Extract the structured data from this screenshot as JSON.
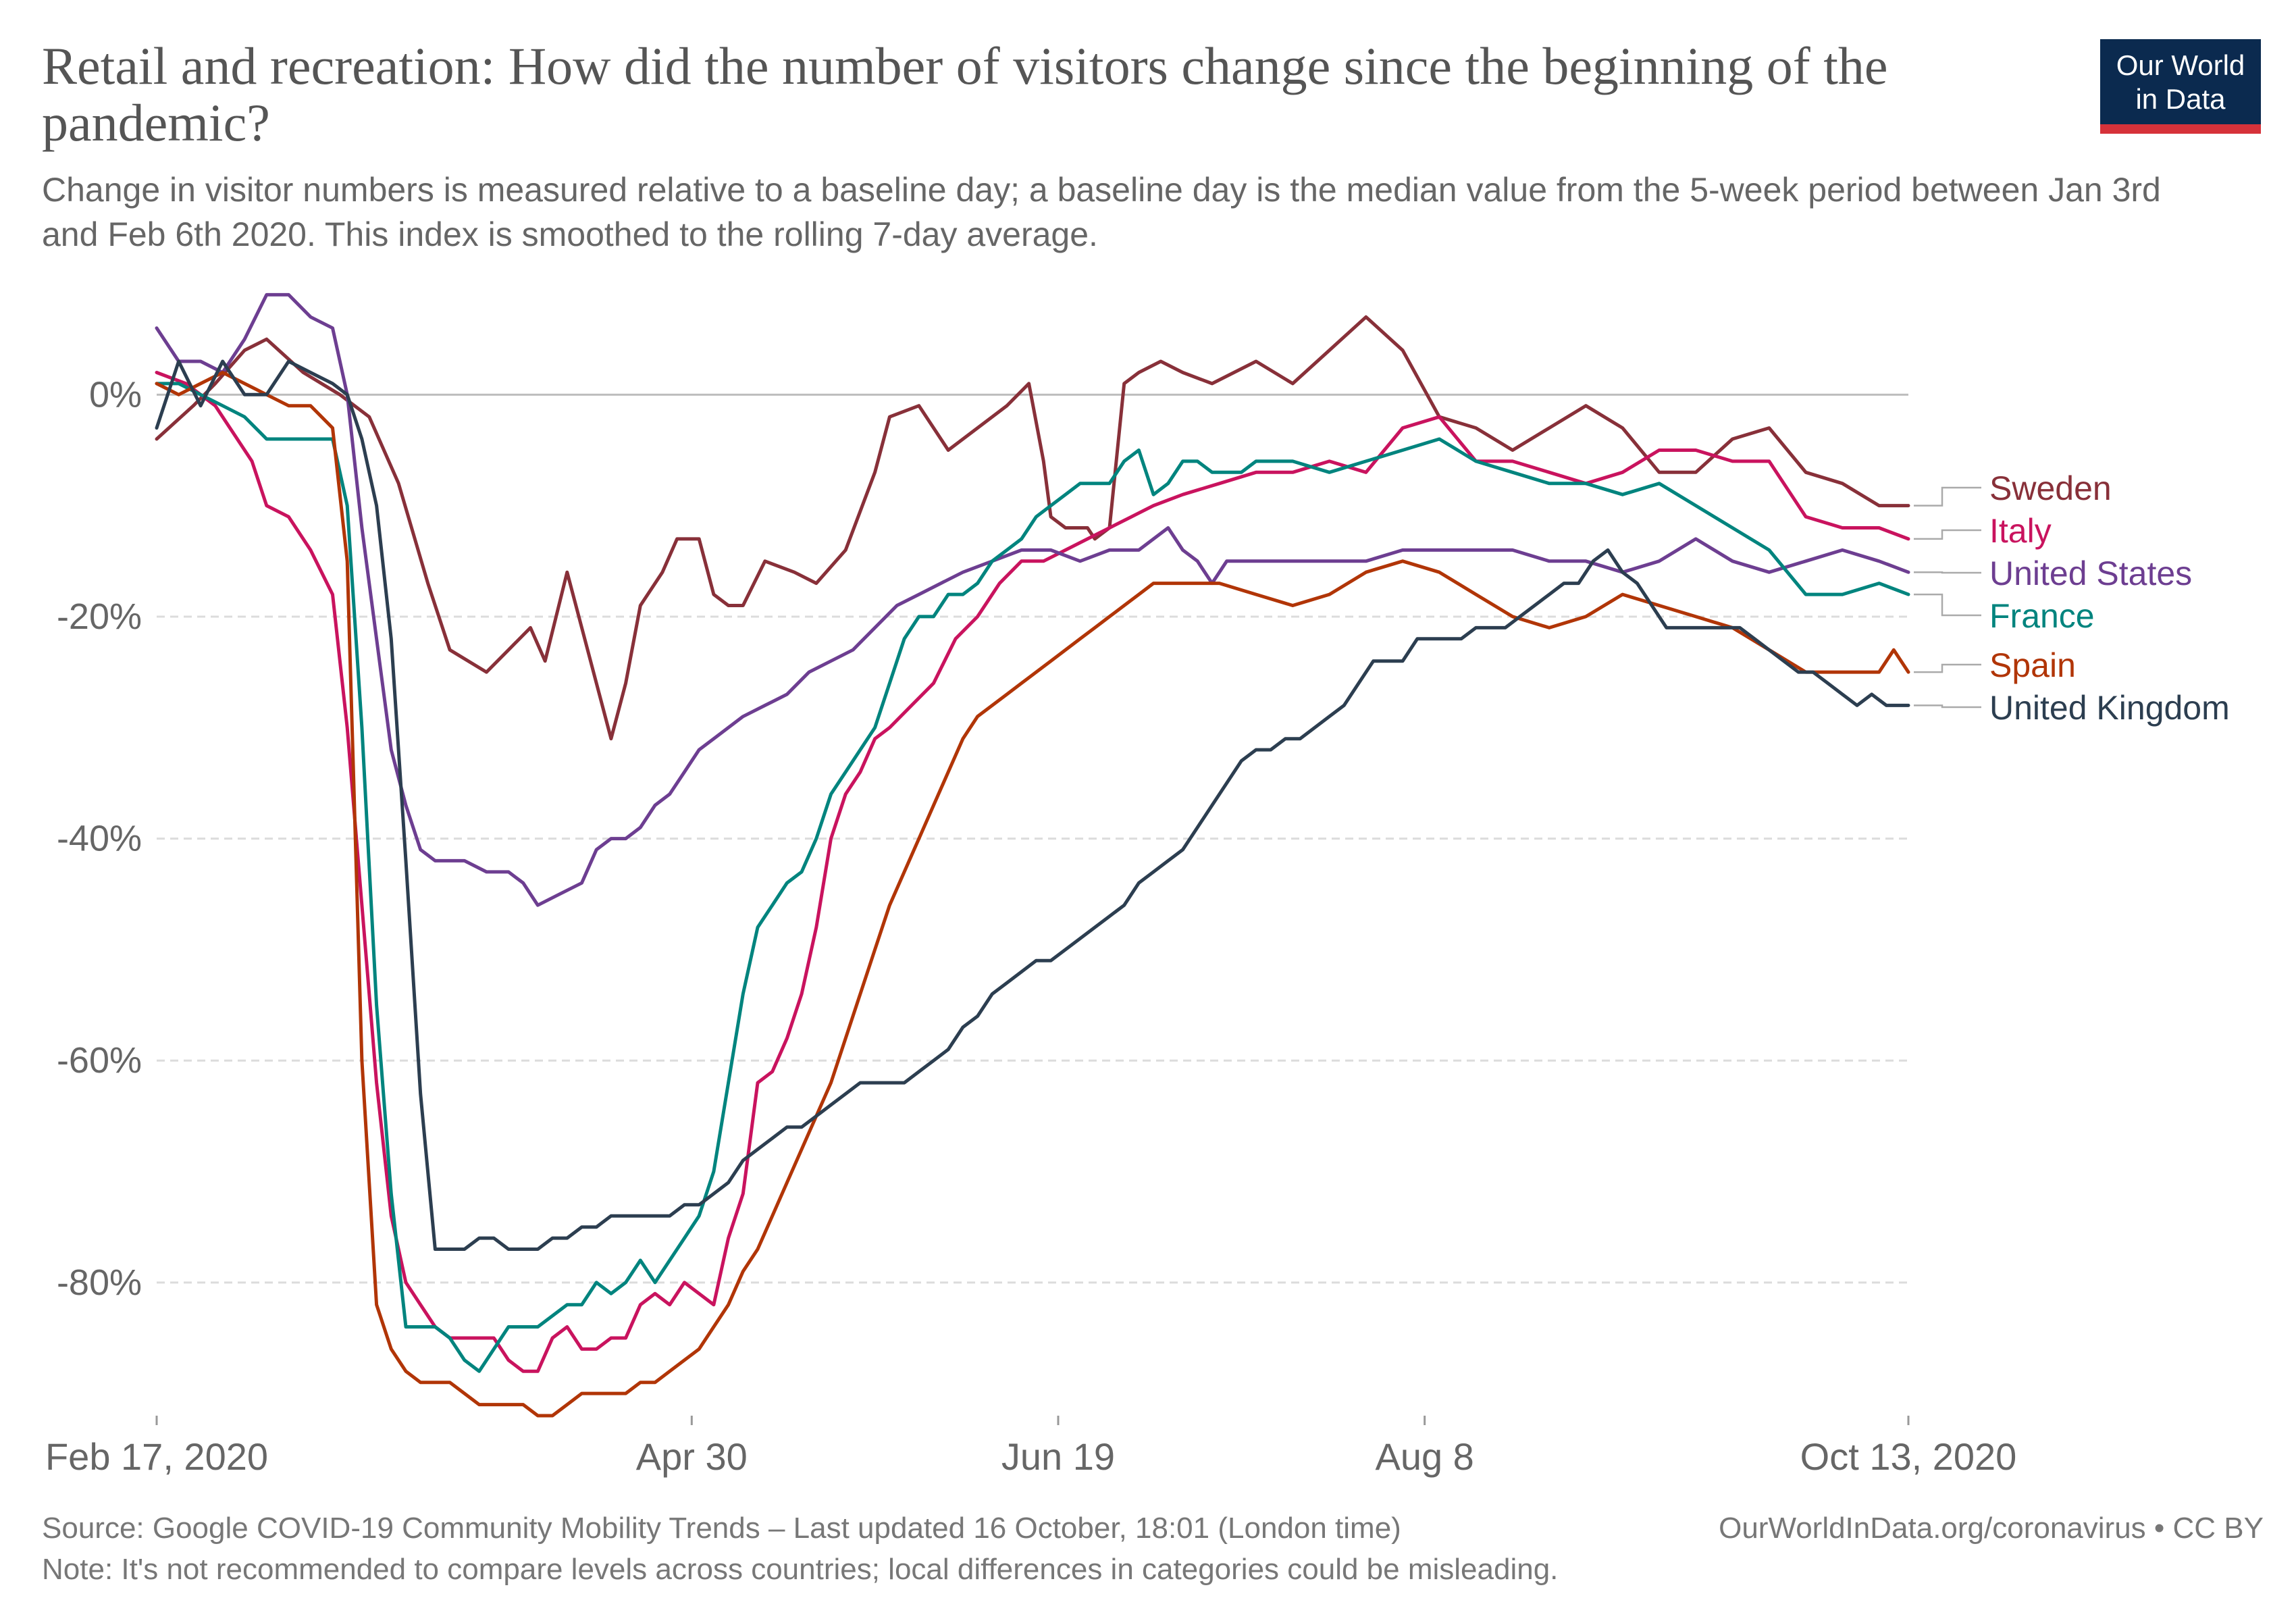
{
  "header": {
    "title": "Retail and recreation: How did the number of visitors change since the beginning of the pandemic?",
    "subtitle": "Change in visitor numbers is measured relative to a baseline day; a baseline day is the median value from the 5-week period between Jan 3rd and Feb 6th 2020. This index is smoothed to the rolling 7-day average.",
    "logo_line1": "Our World",
    "logo_line2": "in Data"
  },
  "footer": {
    "source": "Source: Google COVID-19 Community Mobility Trends – Last updated 16 October, 18:01 (London time)",
    "source_right": "OurWorldInData.org/coronavirus • CC BY",
    "note": "Note: It's not recommended to compare levels across countries; local differences in categories could be misleading."
  },
  "colors": {
    "Sweden": "#883039",
    "Italy": "#c9135e",
    "United States": "#6d3e91",
    "France": "#00847e",
    "Spain": "#b13507",
    "United Kingdom": "#2c3e50"
  },
  "chart_data": {
    "type": "line",
    "title": "Retail and recreation: How did the number of visitors change since the beginning of the pandemic?",
    "xlabel": "",
    "ylabel": "",
    "x_unit": "days since Feb 17, 2020",
    "xlim": [
      0,
      239
    ],
    "ylim": [
      -92,
      10
    ],
    "x_ticks": [
      {
        "day": 0,
        "label": "Feb 17, 2020"
      },
      {
        "day": 73,
        "label": "Apr 30"
      },
      {
        "day": 123,
        "label": "Jun 19"
      },
      {
        "day": 173,
        "label": "Aug 8"
      },
      {
        "day": 239,
        "label": "Oct 13, 2020"
      }
    ],
    "y_ticks": [
      {
        "value": 0,
        "label": "0%"
      },
      {
        "value": -20,
        "label": "-20%"
      },
      {
        "value": -40,
        "label": "-40%"
      },
      {
        "value": -60,
        "label": "-60%"
      },
      {
        "value": -80,
        "label": "-80%"
      }
    ],
    "series": [
      {
        "name": "Sweden",
        "end_label": "Sweden",
        "x": [
          0,
          5,
          8,
          12,
          15,
          20,
          25,
          29,
          33,
          37,
          40,
          45,
          48,
          51,
          53,
          56,
          60,
          62,
          64,
          66,
          69,
          71,
          74,
          76,
          78,
          80,
          83,
          87,
          90,
          94,
          98,
          100,
          104,
          108,
          112,
          116,
          119,
          121,
          122,
          124,
          127,
          128,
          130,
          132,
          134,
          137,
          140,
          144,
          150,
          155,
          160,
          165,
          170,
          175,
          180,
          185,
          190,
          195,
          200,
          205,
          210,
          215,
          220,
          225,
          230,
          235,
          239
        ],
        "y": [
          -4,
          -1,
          1,
          4,
          5,
          2,
          0,
          -2,
          -8,
          -17,
          -23,
          -25,
          -23,
          -21,
          -24,
          -16,
          -26,
          -31,
          -26,
          -19,
          -16,
          -13,
          -13,
          -18,
          -19,
          -19,
          -15,
          -16,
          -17,
          -14,
          -7,
          -2,
          -1,
          -5,
          -3,
          -1,
          1,
          -6,
          -11,
          -12,
          -12,
          -13,
          -12,
          1,
          2,
          3,
          2,
          1,
          3,
          1,
          4,
          7,
          4,
          -2,
          -3,
          -5,
          -3,
          -1,
          -3,
          -7,
          -7,
          -4,
          -3,
          -7,
          -8,
          -10,
          -10
        ]
      },
      {
        "name": "Italy",
        "end_label": "Italy",
        "x": [
          0,
          4,
          8,
          10,
          13,
          15,
          18,
          21,
          24,
          26,
          28,
          30,
          32,
          34,
          36,
          38,
          40,
          43,
          46,
          48,
          50,
          52,
          54,
          56,
          58,
          60,
          62,
          64,
          66,
          68,
          70,
          72,
          74,
          76,
          78,
          80,
          82,
          84,
          86,
          88,
          90,
          92,
          94,
          96,
          98,
          100,
          103,
          106,
          109,
          112,
          115,
          118,
          121,
          124,
          127,
          130,
          133,
          136,
          140,
          145,
          150,
          155,
          160,
          165,
          170,
          175,
          180,
          185,
          190,
          195,
          200,
          205,
          210,
          215,
          220,
          225,
          230,
          235,
          239
        ],
        "y": [
          2,
          1,
          -1,
          -3,
          -6,
          -10,
          -11,
          -14,
          -18,
          -30,
          -46,
          -62,
          -74,
          -80,
          -82,
          -84,
          -85,
          -85,
          -85,
          -87,
          -88,
          -88,
          -85,
          -84,
          -86,
          -86,
          -85,
          -85,
          -82,
          -81,
          -82,
          -80,
          -81,
          -82,
          -76,
          -72,
          -62,
          -61,
          -58,
          -54,
          -48,
          -40,
          -36,
          -34,
          -31,
          -30,
          -28,
          -26,
          -22,
          -20,
          -17,
          -15,
          -15,
          -14,
          -13,
          -12,
          -11,
          -10,
          -9,
          -8,
          -7,
          -7,
          -6,
          -7,
          -3,
          -2,
          -6,
          -6,
          -7,
          -8,
          -7,
          -5,
          -5,
          -6,
          -6,
          -11,
          -12,
          -12,
          -13
        ]
      },
      {
        "name": "United States",
        "end_label": "United States",
        "x": [
          0,
          3,
          6,
          9,
          12,
          15,
          18,
          21,
          24,
          26,
          28,
          30,
          32,
          34,
          36,
          38,
          40,
          42,
          45,
          48,
          50,
          52,
          55,
          58,
          60,
          62,
          64,
          66,
          68,
          70,
          72,
          74,
          76,
          78,
          80,
          83,
          86,
          89,
          92,
          95,
          98,
          101,
          104,
          107,
          110,
          114,
          118,
          122,
          126,
          130,
          134,
          138,
          140,
          142,
          144,
          146,
          150,
          155,
          160,
          165,
          170,
          175,
          180,
          185,
          190,
          195,
          200,
          205,
          210,
          215,
          220,
          225,
          230,
          235,
          239
        ],
        "y": [
          6,
          3,
          3,
          2,
          5,
          9,
          9,
          7,
          6,
          0,
          -12,
          -22,
          -32,
          -37,
          -41,
          -42,
          -42,
          -42,
          -43,
          -43,
          -44,
          -46,
          -45,
          -44,
          -41,
          -40,
          -40,
          -39,
          -37,
          -36,
          -34,
          -32,
          -31,
          -30,
          -29,
          -28,
          -27,
          -25,
          -24,
          -23,
          -21,
          -19,
          -18,
          -17,
          -16,
          -15,
          -14,
          -14,
          -15,
          -14,
          -14,
          -12,
          -14,
          -15,
          -17,
          -15,
          -15,
          -15,
          -15,
          -15,
          -14,
          -14,
          -14,
          -14,
          -15,
          -15,
          -16,
          -15,
          -13,
          -15,
          -16,
          -15,
          -14,
          -15,
          -16
        ]
      },
      {
        "name": "France",
        "end_label": "France",
        "x": [
          0,
          3,
          6,
          9,
          12,
          15,
          18,
          21,
          24,
          26,
          28,
          30,
          32,
          34,
          36,
          38,
          40,
          42,
          44,
          46,
          48,
          50,
          52,
          54,
          56,
          58,
          60,
          62,
          64,
          66,
          68,
          70,
          72,
          74,
          76,
          78,
          80,
          82,
          84,
          86,
          88,
          90,
          92,
          94,
          96,
          98,
          100,
          102,
          104,
          106,
          108,
          110,
          112,
          114,
          116,
          118,
          120,
          122,
          124,
          126,
          128,
          130,
          132,
          134,
          136,
          138,
          140,
          142,
          144,
          146,
          148,
          150,
          155,
          160,
          165,
          170,
          175,
          180,
          185,
          190,
          195,
          200,
          205,
          210,
          215,
          220,
          225,
          230,
          235,
          239
        ],
        "y": [
          1,
          1,
          0,
          -1,
          -2,
          -4,
          -4,
          -4,
          -4,
          -10,
          -30,
          -55,
          -72,
          -84,
          -84,
          -84,
          -85,
          -87,
          -88,
          -86,
          -84,
          -84,
          -84,
          -83,
          -82,
          -82,
          -80,
          -81,
          -80,
          -78,
          -80,
          -78,
          -76,
          -74,
          -70,
          -62,
          -54,
          -48,
          -46,
          -44,
          -43,
          -40,
          -36,
          -34,
          -32,
          -30,
          -26,
          -22,
          -20,
          -20,
          -18,
          -18,
          -17,
          -15,
          -14,
          -13,
          -11,
          -10,
          -9,
          -8,
          -8,
          -8,
          -6,
          -5,
          -9,
          -8,
          -6,
          -6,
          -7,
          -7,
          -7,
          -6,
          -6,
          -7,
          -6,
          -5,
          -4,
          -6,
          -7,
          -8,
          -8,
          -9,
          -8,
          -10,
          -12,
          -14,
          -18,
          -18,
          -17,
          -18
        ]
      },
      {
        "name": "Spain",
        "end_label": "Spain",
        "x": [
          0,
          3,
          6,
          9,
          12,
          15,
          18,
          21,
          24,
          26,
          28,
          30,
          32,
          34,
          36,
          38,
          40,
          42,
          44,
          46,
          48,
          50,
          52,
          54,
          56,
          58,
          60,
          62,
          64,
          66,
          68,
          70,
          72,
          74,
          76,
          78,
          80,
          82,
          84,
          86,
          88,
          90,
          92,
          94,
          96,
          98,
          100,
          102,
          104,
          106,
          108,
          110,
          112,
          114,
          116,
          118,
          120,
          122,
          124,
          126,
          128,
          130,
          132,
          134,
          136,
          138,
          140,
          145,
          150,
          155,
          160,
          165,
          170,
          175,
          180,
          185,
          190,
          195,
          200,
          205,
          210,
          215,
          220,
          225,
          230,
          235,
          237,
          239
        ],
        "y": [
          1,
          0,
          1,
          2,
          1,
          0,
          -1,
          -1,
          -3,
          -15,
          -60,
          -82,
          -86,
          -88,
          -89,
          -89,
          -89,
          -90,
          -91,
          -91,
          -91,
          -91,
          -92,
          -92,
          -91,
          -90,
          -90,
          -90,
          -90,
          -89,
          -89,
          -88,
          -87,
          -86,
          -84,
          -82,
          -79,
          -77,
          -74,
          -71,
          -68,
          -65,
          -62,
          -58,
          -54,
          -50,
          -46,
          -43,
          -40,
          -37,
          -34,
          -31,
          -29,
          -28,
          -27,
          -26,
          -25,
          -24,
          -23,
          -22,
          -21,
          -20,
          -19,
          -18,
          -17,
          -17,
          -17,
          -17,
          -18,
          -19,
          -18,
          -16,
          -15,
          -16,
          -18,
          -20,
          -21,
          -20,
          -18,
          -19,
          -20,
          -21,
          -23,
          -25,
          -25,
          -25,
          -23,
          -25
        ]
      },
      {
        "name": "United Kingdom",
        "end_label": "United Kingdom",
        "x": [
          0,
          3,
          6,
          9,
          12,
          15,
          18,
          21,
          24,
          26,
          28,
          30,
          32,
          34,
          36,
          38,
          40,
          42,
          44,
          46,
          48,
          50,
          52,
          54,
          56,
          58,
          60,
          62,
          64,
          66,
          68,
          70,
          72,
          74,
          76,
          78,
          80,
          82,
          84,
          86,
          88,
          90,
          92,
          94,
          96,
          98,
          100,
          102,
          104,
          106,
          108,
          110,
          112,
          114,
          116,
          118,
          120,
          122,
          124,
          126,
          128,
          130,
          132,
          134,
          136,
          138,
          140,
          142,
          144,
          146,
          148,
          150,
          152,
          154,
          156,
          158,
          160,
          162,
          164,
          166,
          168,
          170,
          172,
          174,
          176,
          178,
          180,
          182,
          184,
          186,
          188,
          190,
          192,
          194,
          196,
          198,
          200,
          202,
          204,
          206,
          208,
          210,
          212,
          214,
          216,
          218,
          220,
          222,
          224,
          226,
          228,
          230,
          232,
          234,
          236,
          239
        ],
        "y": [
          -3,
          3,
          -1,
          3,
          0,
          0,
          3,
          2,
          1,
          0,
          -4,
          -10,
          -22,
          -42,
          -63,
          -77,
          -77,
          -77,
          -76,
          -76,
          -77,
          -77,
          -77,
          -76,
          -76,
          -75,
          -75,
          -74,
          -74,
          -74,
          -74,
          -74,
          -73,
          -73,
          -72,
          -71,
          -69,
          -68,
          -67,
          -66,
          -66,
          -65,
          -64,
          -63,
          -62,
          -62,
          -62,
          -62,
          -61,
          -60,
          -59,
          -57,
          -56,
          -54,
          -53,
          -52,
          -51,
          -51,
          -50,
          -49,
          -48,
          -47,
          -46,
          -44,
          -43,
          -42,
          -41,
          -39,
          -37,
          -35,
          -33,
          -32,
          -32,
          -31,
          -31,
          -30,
          -29,
          -28,
          -26,
          -24,
          -24,
          -24,
          -22,
          -22,
          -22,
          -22,
          -21,
          -21,
          -21,
          -20,
          -19,
          -18,
          -17,
          -17,
          -15,
          -14,
          -16,
          -17,
          -19,
          -21,
          -21,
          -21,
          -21,
          -21,
          -21,
          -22,
          -23,
          -24,
          -25,
          -25,
          -26,
          -27,
          -28,
          -27,
          -28,
          -28
        ]
      }
    ]
  }
}
